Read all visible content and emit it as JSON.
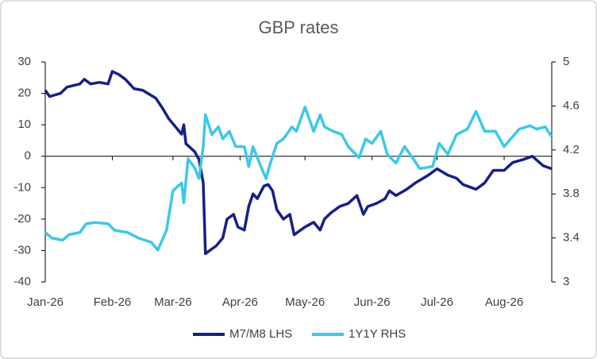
{
  "chart_data": {
    "type": "line",
    "title": "GBP rates",
    "xlim": [
      0,
      234
    ],
    "xticks": [
      {
        "value": 0,
        "label": "Jan-26"
      },
      {
        "value": 31,
        "label": "Feb-26"
      },
      {
        "value": 59,
        "label": "Mar-26"
      },
      {
        "value": 90,
        "label": "Apr-26"
      },
      {
        "value": 120,
        "label": "May-26"
      },
      {
        "value": 151,
        "label": "Jun-26"
      },
      {
        "value": 181,
        "label": "Jul-26"
      },
      {
        "value": 212,
        "label": "Aug-26"
      }
    ],
    "ylim": [
      -40,
      30
    ],
    "yticks": [
      -40,
      -30,
      -20,
      -10,
      0,
      10,
      20,
      30
    ],
    "y2lim": [
      3,
      5
    ],
    "y2ticks": [
      3,
      3.4,
      3.8,
      4.2,
      4.6,
      5
    ],
    "legend": "bottom",
    "series": [
      {
        "name": "M7/M8 LHS",
        "color": "#172087",
        "x": [
          0,
          2,
          7,
          10,
          16,
          18,
          21,
          25,
          29,
          31,
          34,
          37,
          41,
          45,
          51,
          54,
          57,
          60,
          63,
          64,
          65,
          69,
          71,
          73,
          74,
          76,
          79,
          82,
          84,
          87,
          89,
          92,
          94,
          96,
          98,
          101,
          103,
          105,
          107,
          110,
          113,
          115,
          118,
          120,
          124,
          127,
          129,
          132,
          136,
          140,
          144,
          147,
          149,
          153,
          157,
          159,
          162,
          167,
          171,
          177,
          181,
          186,
          190,
          193,
          199,
          203,
          207,
          212,
          216,
          221,
          225,
          230,
          234
        ],
        "values": [
          21,
          19,
          20,
          22,
          23,
          24.5,
          23,
          23.5,
          23,
          27,
          26,
          24.5,
          21.5,
          21,
          18.5,
          15.5,
          12,
          9.5,
          7,
          10,
          4,
          1.5,
          -1,
          -8.5,
          -31,
          -30,
          -28.5,
          -26,
          -20,
          -18.5,
          -22.5,
          -23.5,
          -16,
          -12,
          -13.5,
          -9.5,
          -9,
          -11,
          -17,
          -20,
          -18.5,
          -25,
          -23.5,
          -22.5,
          -21,
          -23.5,
          -20,
          -18,
          -16,
          -15,
          -12.5,
          -18.5,
          -16,
          -15,
          -13.5,
          -11,
          -12.5,
          -10.5,
          -8.5,
          -6,
          -4,
          -6,
          -7,
          -9,
          -10.5,
          -8.5,
          -4.5,
          -4.5,
          -2,
          -1,
          0,
          -3,
          -4
        ]
      },
      {
        "name": "1Y1Y RHS",
        "color": "#3cc8e8",
        "axis": "y2",
        "x": [
          0,
          3,
          8,
          11,
          16,
          19,
          23,
          29,
          32,
          38,
          43,
          49,
          52,
          56,
          59,
          63,
          64,
          66,
          69,
          71,
          73,
          74,
          77,
          80,
          82,
          85,
          88,
          92,
          94,
          96,
          99,
          102,
          104,
          107,
          110,
          114,
          116,
          120,
          124,
          127,
          129,
          133,
          137,
          140,
          145,
          148,
          151,
          155,
          158,
          162,
          166,
          170,
          173,
          179,
          182,
          186,
          190,
          195,
          199,
          203,
          208,
          212,
          215,
          219,
          224,
          227,
          231,
          234
        ],
        "values": [
          3.45,
          3.4,
          3.38,
          3.43,
          3.45,
          3.53,
          3.54,
          3.53,
          3.47,
          3.45,
          3.4,
          3.36,
          3.29,
          3.47,
          3.83,
          3.9,
          3.72,
          4.12,
          4.04,
          3.94,
          4.23,
          4.52,
          4.34,
          4.41,
          4.3,
          4.37,
          4.23,
          4.23,
          4.05,
          4.23,
          4.08,
          3.94,
          4.08,
          4.26,
          4.3,
          4.41,
          4.37,
          4.59,
          4.37,
          4.52,
          4.41,
          4.37,
          4.34,
          4.23,
          4.13,
          4.3,
          4.26,
          4.37,
          4.16,
          4.08,
          4.23,
          4.12,
          4.03,
          4.05,
          4.26,
          4.16,
          4.34,
          4.39,
          4.55,
          4.37,
          4.37,
          4.23,
          4.3,
          4.39,
          4.42,
          4.39,
          4.41,
          4.32
        ]
      }
    ]
  }
}
